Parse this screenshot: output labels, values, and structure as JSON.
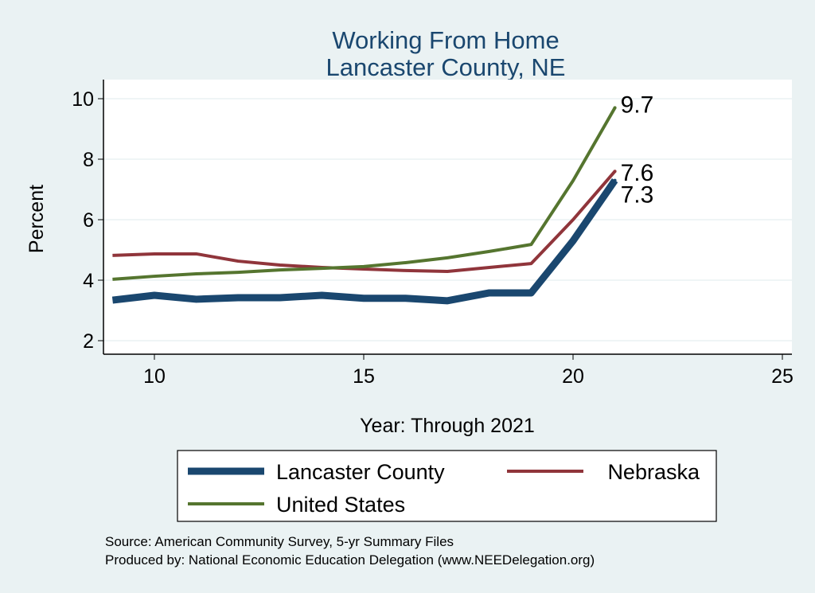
{
  "chart_data": {
    "type": "line",
    "title": "Working From Home",
    "subtitle": "Lancaster County, NE",
    "xlabel": "Year: Through 2021",
    "ylabel": "Percent",
    "xlim": [
      8.8,
      25.3
    ],
    "ylim": [
      1.6,
      10.6
    ],
    "xticks": [
      10,
      15,
      20,
      25
    ],
    "yticks": [
      2,
      4,
      6,
      8,
      10
    ],
    "grid": true,
    "legend_position": "bottom",
    "x": [
      9,
      10,
      11,
      12,
      13,
      14,
      15,
      16,
      17,
      18,
      19,
      20,
      21
    ],
    "series": [
      {
        "name": "Lancaster County",
        "color": "#1a476f",
        "width": 9,
        "values": [
          3.34,
          3.5,
          3.37,
          3.42,
          3.42,
          3.5,
          3.4,
          3.4,
          3.32,
          3.58,
          3.58,
          5.3,
          7.3
        ],
        "end_label": "7.3"
      },
      {
        "name": "Nebraska",
        "color": "#90353b",
        "width": 4,
        "values": [
          4.82,
          4.87,
          4.87,
          4.63,
          4.5,
          4.42,
          4.37,
          4.32,
          4.29,
          4.42,
          4.55,
          6.0,
          7.6
        ],
        "end_label": "7.6"
      },
      {
        "name": "United States",
        "color": "#55752f",
        "width": 4,
        "values": [
          4.03,
          4.13,
          4.21,
          4.26,
          4.34,
          4.39,
          4.45,
          4.58,
          4.74,
          4.95,
          5.18,
          7.29,
          9.7
        ],
        "end_label": "9.7"
      }
    ],
    "notes": [
      "Source: American Community Survey, 5-yr Summary Files",
      "Produced by: National Economic Education Delegation (www.NEEDelegation.org)"
    ]
  }
}
